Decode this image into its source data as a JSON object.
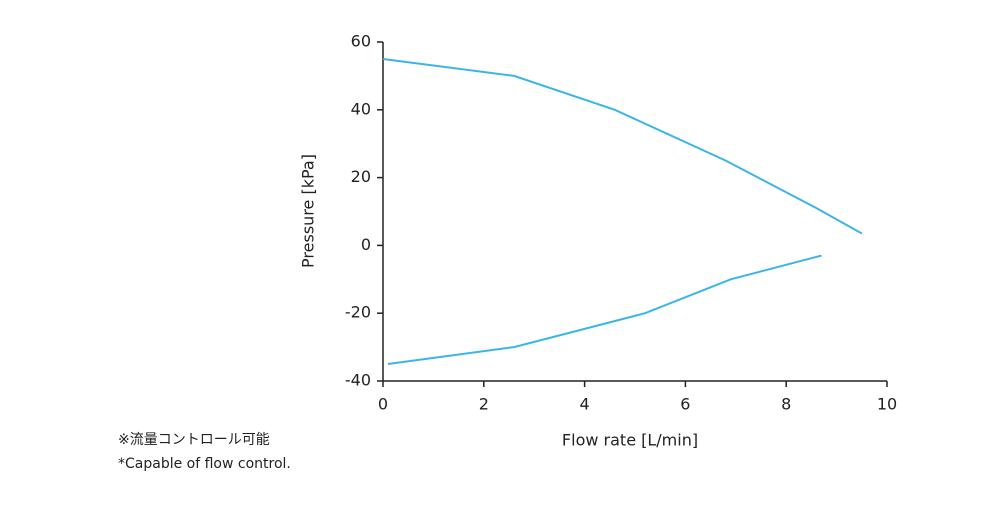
{
  "chart_data": {
    "type": "line",
    "x_label": "Flow rate [L/min]",
    "y_label": "Pressure [kPa]",
    "series": [
      {
        "color": "#3cb4e8",
        "x": [
          0,
          2.6,
          4.6,
          6.8,
          8.6,
          9.5
        ],
        "values": [
          55,
          50,
          40,
          25,
          11,
          3.5
        ]
      },
      {
        "color": "#3cb4e8",
        "x": [
          0.1,
          2.6,
          5.2,
          6.9,
          8.7
        ],
        "values": [
          -35,
          -30,
          -20,
          -10,
          -3
        ]
      }
    ],
    "xlim": [
      0,
      10
    ],
    "xticks": [
      0,
      2,
      4,
      6,
      8,
      10
    ],
    "ylim": [
      -40,
      60
    ],
    "yticks": [
      60,
      40,
      20,
      0,
      -20,
      -40
    ],
    "grid": false
  },
  "notes": [
    "※流量コントロール可能",
    "*Capable of flow control."
  ]
}
